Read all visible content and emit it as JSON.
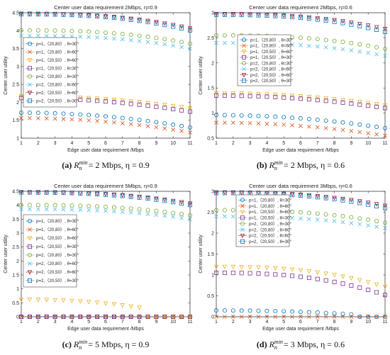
{
  "legend_entries": [
    "p=1,（20,80）, θ=30°",
    "p=1,（20,80）, θ=60°",
    "p=1,（20,50）, θ=60°",
    "p=1,（20,50）, θ=30°",
    "p=2,（20,80）, θ=30°",
    "p=2,（20,80）, θ=60°",
    "p=2,（20,50）, θ=60°",
    "p=2,（20,50）, θ=30°"
  ],
  "series_styles": [
    {
      "color": "#0072bd",
      "marker": "circle"
    },
    {
      "color": "#d95319",
      "marker": "x"
    },
    {
      "color": "#edb120",
      "marker": "triangle-down"
    },
    {
      "color": "#7e2f8e",
      "marker": "square"
    },
    {
      "color": "#77ac30",
      "marker": "circle"
    },
    {
      "color": "#4dbeee",
      "marker": "x"
    },
    {
      "color": "#a2142f",
      "marker": "triangle-down"
    },
    {
      "color": "#0072bd",
      "marker": "square"
    }
  ],
  "chart_data": [
    {
      "type": "scatter",
      "title": "Center user data requirement 2Mbps,  η=0.9",
      "xlabel": "Edge user data requirement /Mbps",
      "ylabel": "Center user utility",
      "xlim": [
        1,
        11
      ],
      "ylim": [
        1,
        4.5
      ],
      "xticks": [
        1,
        2,
        3,
        4,
        5,
        6,
        7,
        8,
        9,
        10,
        11
      ],
      "yticks": [
        1,
        1.5,
        2,
        2.5,
        3,
        3.5,
        4,
        4.5
      ],
      "legend_position": "middle-left",
      "caption": {
        "letter": "(a)",
        "text": "R_n^min = 2 Mbps, η = 0.9"
      },
      "series": [
        {
          "legend_index": 0,
          "y_start": 1.71,
          "y_end": 1.3,
          "curve": 2
        },
        {
          "legend_index": 1,
          "y_start": 1.56,
          "y_end": 1.16,
          "curve": 2
        },
        {
          "legend_index": 2,
          "y_start": 2.18,
          "y_end": 1.84,
          "curve": 2
        },
        {
          "legend_index": 3,
          "y_start": 2.12,
          "y_end": 1.74,
          "curve": 2
        },
        {
          "legend_index": 4,
          "y_start": 4.01,
          "y_end": 3.64,
          "curve": 2.5
        },
        {
          "legend_index": 5,
          "y_start": 3.86,
          "y_end": 3.5,
          "curve": 2.5
        },
        {
          "legend_index": 6,
          "y_start": 4.48,
          "y_end": 4.07,
          "curve": 2.5
        },
        {
          "legend_index": 7,
          "y_start": 4.46,
          "y_end": 4.01,
          "curve": 2.5
        }
      ]
    },
    {
      "type": "scatter",
      "title": "Center user data requirement 2Mbps,  η=0.6",
      "xlabel": "Edge user data requirement /Mbps",
      "ylabel": "Center user utility",
      "xlim": [
        1,
        11
      ],
      "ylim": [
        0.5,
        3
      ],
      "xticks": [
        1,
        2,
        3,
        4,
        5,
        6,
        7,
        8,
        9,
        10,
        11
      ],
      "yticks": [
        0.5,
        1,
        1.5,
        2,
        2.5,
        3
      ],
      "legend_position": "middle-right",
      "caption": {
        "letter": "(b)",
        "text": "R_n^min = 2 Mbps, η = 0.6"
      },
      "series": [
        {
          "legend_index": 0,
          "y_start": 0.96,
          "y_end": 0.7,
          "curve": 2
        },
        {
          "legend_index": 1,
          "y_start": 0.81,
          "y_end": 0.55,
          "curve": 2
        },
        {
          "legend_index": 2,
          "y_start": 1.4,
          "y_end": 1.16,
          "curve": 2
        },
        {
          "legend_index": 3,
          "y_start": 1.35,
          "y_end": 1.1,
          "curve": 2
        },
        {
          "legend_index": 4,
          "y_start": 2.55,
          "y_end": 2.28,
          "curve": 2.5
        },
        {
          "legend_index": 5,
          "y_start": 2.4,
          "y_end": 2.14,
          "curve": 2.5
        },
        {
          "legend_index": 6,
          "y_start": 2.98,
          "y_end": 2.68,
          "curve": 2.5
        },
        {
          "legend_index": 7,
          "y_start": 2.96,
          "y_end": 2.62,
          "curve": 2.5
        }
      ]
    },
    {
      "type": "scatter",
      "title": "Center user data requirement 5Mbps,  η=0.9",
      "xlabel": "Edge user data requirement /Mbps",
      "ylabel": "Center user utility",
      "xlim": [
        1,
        11
      ],
      "ylim": [
        0,
        4.5
      ],
      "xticks": [
        1,
        2,
        3,
        4,
        5,
        6,
        7,
        8,
        9,
        10,
        11
      ],
      "yticks": [
        0,
        0.5,
        1,
        1.5,
        2,
        2.5,
        3,
        3.5,
        4,
        4.5
      ],
      "legend_position": "middle-left",
      "caption": {
        "letter": "(c)",
        "text": "R_n^min = 5 Mbps, η = 0.9"
      },
      "series": [
        {
          "legend_index": 0,
          "y_start": 0.0,
          "y_end": 0.0,
          "curve": 2
        },
        {
          "legend_index": 1,
          "y_start": 0.0,
          "y_end": 0.0,
          "curve": 2
        },
        {
          "legend_index": 2,
          "y_start": 0.62,
          "y_end": 0.0,
          "curve": 2.2,
          "zero_after": 8.5
        },
        {
          "legend_index": 3,
          "y_start": 0.0,
          "y_end": 0.0,
          "curve": 2
        },
        {
          "legend_index": 4,
          "y_start": 4.01,
          "y_end": 3.64,
          "curve": 2.5
        },
        {
          "legend_index": 5,
          "y_start": 3.86,
          "y_end": 3.5,
          "curve": 2.5
        },
        {
          "legend_index": 6,
          "y_start": 4.48,
          "y_end": 4.07,
          "curve": 2.5
        },
        {
          "legend_index": 7,
          "y_start": 4.46,
          "y_end": 4.01,
          "curve": 2.5
        }
      ]
    },
    {
      "type": "scatter",
      "title": "Center user data requirement 3Mbps,  η=0.6",
      "xlabel": "Edge user data requirement /Mbps",
      "ylabel": "Center user utility",
      "xlim": [
        1,
        11
      ],
      "ylim": [
        0,
        3
      ],
      "xticks": [
        1,
        2,
        3,
        4,
        5,
        6,
        7,
        8,
        9,
        10,
        11
      ],
      "yticks": [
        0,
        0.5,
        1,
        1.5,
        2,
        2.5,
        3
      ],
      "legend_position": "top-left",
      "caption": {
        "letter": "(d)",
        "text": "R_n^min = 3 Mbps, η = 0.6"
      },
      "series": [
        {
          "legend_index": 0,
          "y_start": 0.15,
          "y_end": 0.0,
          "curve": 2.2,
          "zero_after": 9.5
        },
        {
          "legend_index": 1,
          "y_start": 0.0,
          "y_end": 0.0,
          "curve": 2
        },
        {
          "legend_index": 2,
          "y_start": 1.2,
          "y_end": 0.72,
          "curve": 2.5
        },
        {
          "legend_index": 3,
          "y_start": 1.05,
          "y_end": 0.52,
          "curve": 2.5
        },
        {
          "legend_index": 4,
          "y_start": 2.55,
          "y_end": 2.25,
          "curve": 2.5
        },
        {
          "legend_index": 5,
          "y_start": 2.4,
          "y_end": 2.12,
          "curve": 2.5
        },
        {
          "legend_index": 6,
          "y_start": 2.98,
          "y_end": 2.66,
          "curve": 2.5
        },
        {
          "legend_index": 7,
          "y_start": 2.96,
          "y_end": 2.6,
          "curve": 2.5
        }
      ]
    }
  ]
}
